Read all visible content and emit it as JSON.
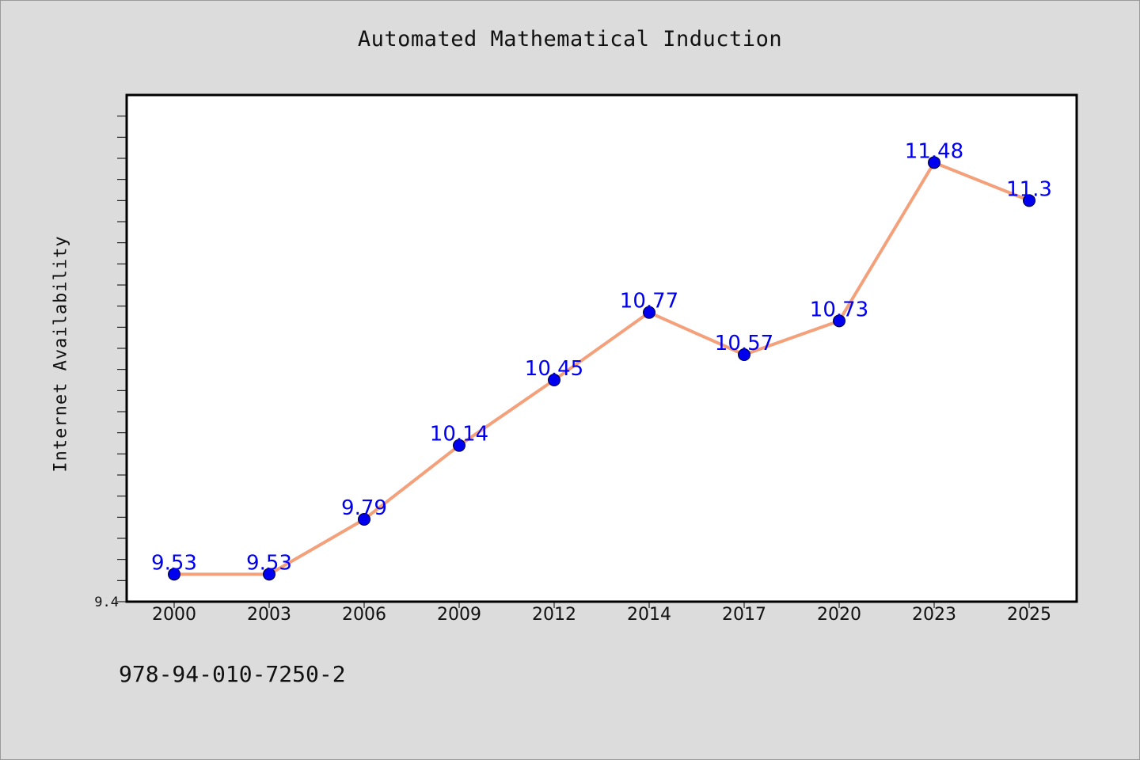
{
  "chart_data": {
    "type": "line",
    "title": "Automated Mathematical Induction",
    "xlabel": "",
    "ylabel": "Internet Availability",
    "categories": [
      "2000",
      "2003",
      "2006",
      "2009",
      "2012",
      "2014",
      "2017",
      "2020",
      "2023",
      "2025"
    ],
    "series": [
      {
        "values": [
          9.53,
          9.53,
          9.79,
          10.14,
          10.45,
          10.77,
          10.57,
          10.73,
          11.48,
          11.3
        ],
        "labels": [
          "9.53",
          "9.53",
          "9.79",
          "10.14",
          "10.45",
          "10.77",
          "10.57",
          "10.73",
          "11.48",
          "11.3"
        ]
      }
    ],
    "ylim": [
      9.4,
      11.8
    ],
    "yticks": [
      "9.4"
    ],
    "grid": false,
    "colors": {
      "line": "#f4a07a",
      "marker": "#0000ee",
      "label": "#0000ee",
      "plot_background": "#ffffff",
      "page_background": "#dcdcdc"
    }
  },
  "footer": {
    "isbn": "978-94-010-7250-2"
  }
}
